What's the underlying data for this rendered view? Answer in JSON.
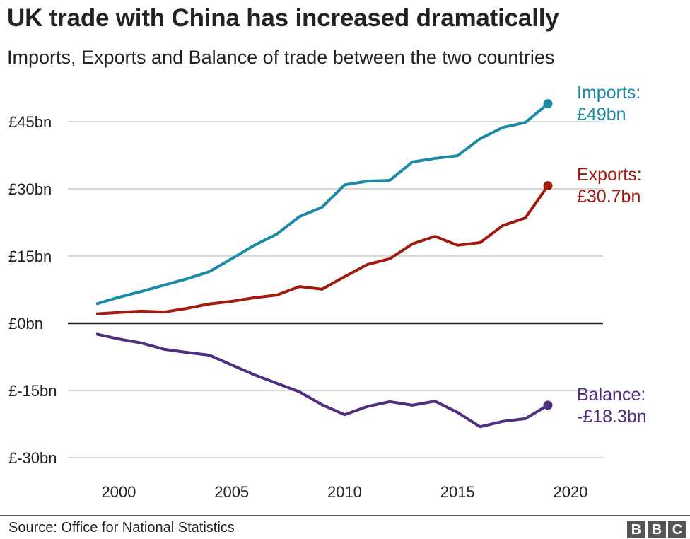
{
  "chart_data": {
    "type": "line",
    "title": "UK trade with China has increased dramatically",
    "subtitle": "Imports, Exports and Balance of trade between the two countries",
    "xlabel": "",
    "ylabel": "",
    "x": [
      1999,
      2000,
      2001,
      2002,
      2003,
      2004,
      2005,
      2006,
      2007,
      2008,
      2009,
      2010,
      2011,
      2012,
      2013,
      2014,
      2015,
      2016,
      2017,
      2018,
      2019
    ],
    "xlim": [
      1999,
      2020
    ],
    "xticks": [
      2000,
      2005,
      2010,
      2015,
      2020
    ],
    "xtick_labels": [
      "2000",
      "2005",
      "2010",
      "2015",
      "2020"
    ],
    "ylim": [
      -30,
      49
    ],
    "yticks": [
      45,
      30,
      15,
      0,
      -15,
      -30
    ],
    "ytick_labels": [
      "£45bn",
      "£30bn",
      "£15bn",
      "£0bn",
      "£-15bn",
      "£-30bn"
    ],
    "grid": "horizontal",
    "series": [
      {
        "name": "Imports",
        "label_line1": "Imports:",
        "label_line2": "£49bn",
        "color": "#1a8aa6",
        "values": [
          4.3,
          5.8,
          7.1,
          8.5,
          9.9,
          11.5,
          14.4,
          17.4,
          19.9,
          23.8,
          25.9,
          30.9,
          31.7,
          31.9,
          36.0,
          36.8,
          37.4,
          41.2,
          43.7,
          44.8,
          49.0
        ]
      },
      {
        "name": "Exports",
        "label_line1": "Exports:",
        "label_line2": "£30.7bn",
        "color": "#a01a0d",
        "values": [
          2.1,
          2.4,
          2.7,
          2.5,
          3.3,
          4.3,
          4.9,
          5.7,
          6.3,
          8.2,
          7.6,
          10.4,
          13.1,
          14.4,
          17.7,
          19.4,
          17.4,
          18.0,
          21.8,
          23.5,
          30.7
        ]
      },
      {
        "name": "Balance",
        "label_line1": "Balance:",
        "label_line2": "-£18.3bn",
        "color": "#4f2d7f",
        "values": [
          -2.4,
          -3.5,
          -4.4,
          -5.8,
          -6.5,
          -7.1,
          -9.3,
          -11.5,
          -13.4,
          -15.3,
          -18.2,
          -20.4,
          -18.6,
          -17.5,
          -18.3,
          -17.4,
          -19.9,
          -23.1,
          -21.9,
          -21.3,
          -18.3
        ]
      }
    ]
  },
  "footer": {
    "source": "Source: Office for National Statistics",
    "logo": [
      "B",
      "B",
      "C"
    ]
  }
}
